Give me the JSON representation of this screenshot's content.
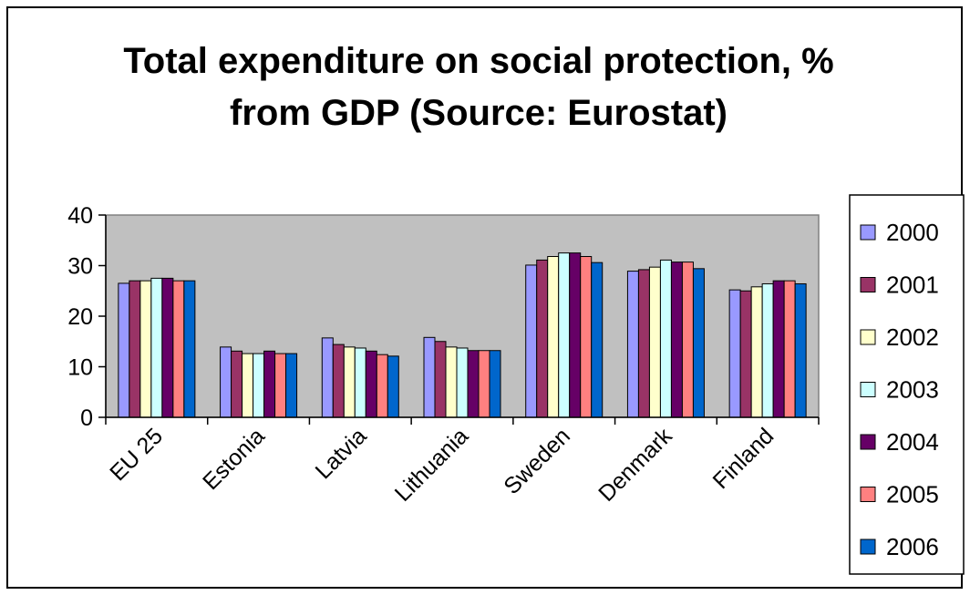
{
  "chart_data": {
    "type": "bar",
    "title_lines": [
      "Total expenditure on social protection, %",
      "from GDP (Source: Eurostat)"
    ],
    "categories": [
      "EU 25",
      "Estonia",
      "Latvia",
      "Lithuania",
      "Sweden",
      "Denmark",
      "Finland"
    ],
    "ylim": [
      0,
      40
    ],
    "yticks": [
      "0",
      "10",
      "20",
      "30",
      "40"
    ],
    "ytick_values": [
      0,
      10,
      20,
      30,
      40
    ],
    "grid": false,
    "plot_background": "#C0C0C0",
    "legend_placement": "right",
    "series": [
      {
        "name": "2000",
        "color": "#9999FF",
        "values": [
          26.5,
          13.9,
          15.7,
          15.8,
          30.1,
          28.9,
          25.2
        ]
      },
      {
        "name": "2001",
        "color": "#993366",
        "values": [
          27.0,
          13.1,
          14.4,
          15.0,
          31.1,
          29.2,
          25.0
        ]
      },
      {
        "name": "2002",
        "color": "#FFFFCC",
        "values": [
          27.0,
          12.6,
          13.9,
          13.9,
          31.8,
          29.7,
          25.8
        ]
      },
      {
        "name": "2003",
        "color": "#CCFFFF",
        "values": [
          27.5,
          12.6,
          13.7,
          13.7,
          32.5,
          31.1,
          26.4
        ]
      },
      {
        "name": "2004",
        "color": "#660066",
        "values": [
          27.5,
          13.1,
          13.1,
          13.2,
          32.5,
          30.7,
          27.0
        ]
      },
      {
        "name": "2005",
        "color": "#FF8080",
        "values": [
          27.0,
          12.6,
          12.4,
          13.2,
          31.8,
          30.7,
          27.0
        ]
      },
      {
        "name": "2006",
        "color": "#0066CC",
        "values": [
          27.0,
          12.6,
          12.1,
          13.2,
          30.6,
          29.4,
          26.4
        ]
      }
    ]
  }
}
